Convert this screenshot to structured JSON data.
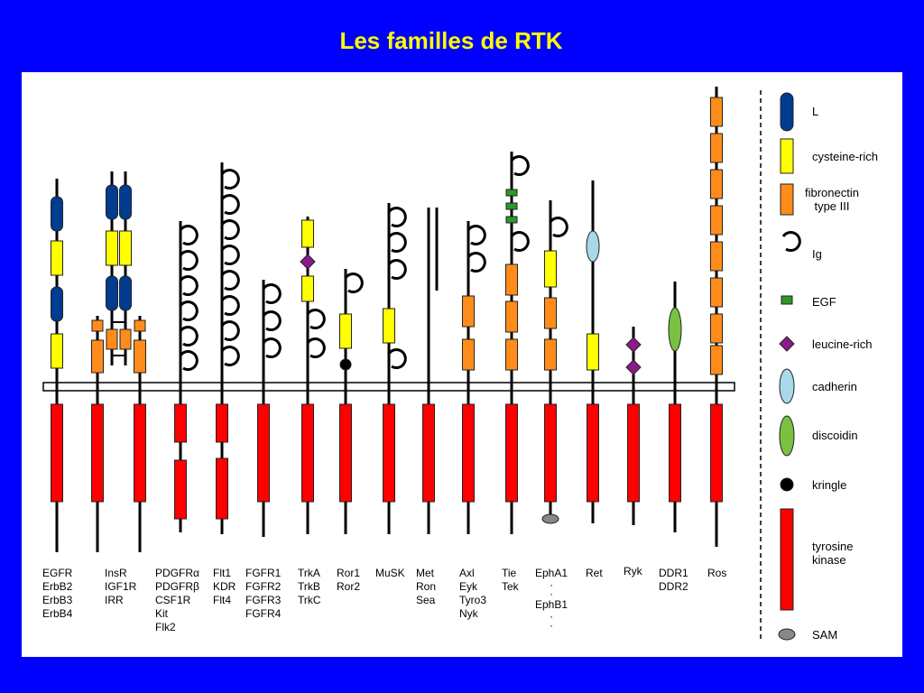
{
  "title": "Les familles de RTK",
  "families": [
    {
      "id": "egfr",
      "lines": [
        "EGFR",
        "ErbB2",
        "ErbB3",
        "ErbB4"
      ]
    },
    {
      "id": "insr",
      "lines": [
        "InsR",
        "IGF1R",
        "IRR"
      ]
    },
    {
      "id": "pdgfr",
      "lines": [
        "PDGFRα",
        "PDGFRβ",
        "CSF1R",
        "Kit",
        "Flk2"
      ]
    },
    {
      "id": "flt",
      "lines": [
        "Flt1",
        "KDR",
        "Flt4"
      ]
    },
    {
      "id": "fgfr",
      "lines": [
        "FGFR1",
        "FGFR2",
        "FGFR3",
        "FGFR4"
      ]
    },
    {
      "id": "trk",
      "lines": [
        "TrkA",
        "TrkB",
        "TrkC"
      ]
    },
    {
      "id": "ror",
      "lines": [
        "Ror1",
        "Ror2"
      ]
    },
    {
      "id": "musk",
      "lines": [
        "MuSK"
      ]
    },
    {
      "id": "met",
      "lines": [
        "Met",
        "Ron",
        "Sea"
      ]
    },
    {
      "id": "axl",
      "lines": [
        "Axl",
        "Eyk",
        "Tyro3",
        "Nyk"
      ]
    },
    {
      "id": "tie",
      "lines": [
        "Tie",
        "Tek"
      ]
    },
    {
      "id": "eph",
      "lines": [
        "EphA1",
        "·",
        "·",
        "EphB1",
        "·",
        "·"
      ]
    },
    {
      "id": "ret",
      "lines": [
        "Ret"
      ]
    },
    {
      "id": "ryk",
      "lines": [
        "Ryk"
      ]
    },
    {
      "id": "ddr",
      "lines": [
        "DDR1",
        "DDR2"
      ]
    },
    {
      "id": "ros",
      "lines": [
        "Ros"
      ]
    }
  ],
  "legend": [
    {
      "key": "l",
      "label": "L",
      "color": "#003c8f"
    },
    {
      "key": "cys",
      "label": "cysteine-rich",
      "color": "#ffff00"
    },
    {
      "key": "fn3",
      "label": "fibronectin\ntype III",
      "color": "#ff8c1a"
    },
    {
      "key": "ig",
      "label": "Ig",
      "color": "#000000"
    },
    {
      "key": "egf",
      "label": "EGF",
      "color": "#2a9a2a"
    },
    {
      "key": "lrr",
      "label": "leucine-rich",
      "color": "#8b1a8b"
    },
    {
      "key": "cad",
      "label": "cadherin",
      "color": "#a8d8ea"
    },
    {
      "key": "disc",
      "label": "discoidin",
      "color": "#7ac142"
    },
    {
      "key": "kring",
      "label": "kringle",
      "color": "#000000"
    },
    {
      "key": "tk",
      "label": "tyrosine\nkinase",
      "color": "#ff0000"
    },
    {
      "key": "sam",
      "label": "SAM",
      "color": "#888888"
    }
  ]
}
